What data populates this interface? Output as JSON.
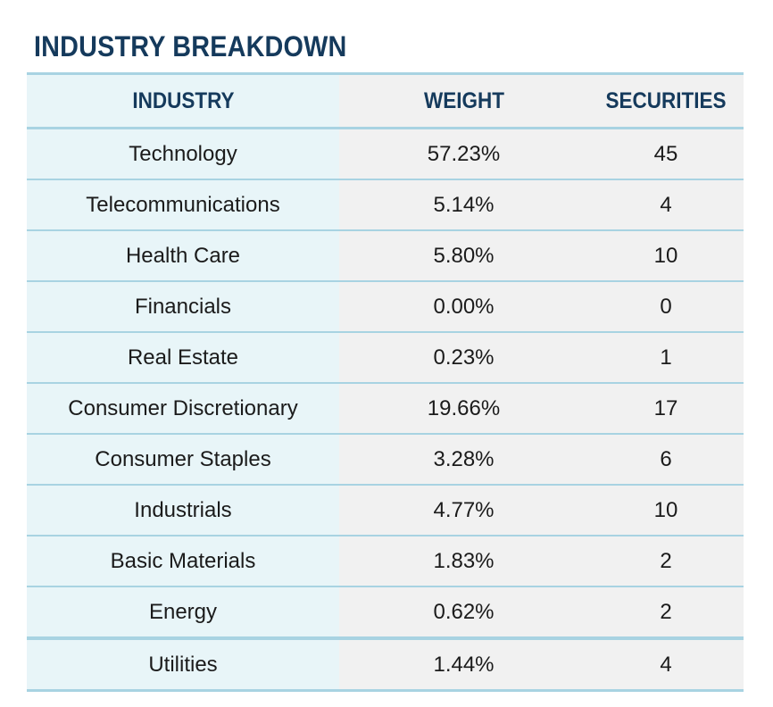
{
  "title": "INDUSTRY BREAKDOWN",
  "colors": {
    "title": "#153a5c",
    "border": "#a8d3e2",
    "industry_column_bg": "#e8f5f8",
    "value_column_bg": "#f1f1f1"
  },
  "columns": {
    "industry": "INDUSTRY",
    "weight": "WEIGHT",
    "securities": "SECURITIES"
  },
  "rows": [
    {
      "industry": "Technology",
      "weight": "57.23%",
      "securities": "45"
    },
    {
      "industry": "Telecommunications",
      "weight": "5.14%",
      "securities": "4"
    },
    {
      "industry": "Health Care",
      "weight": "5.80%",
      "securities": "10"
    },
    {
      "industry": "Financials",
      "weight": "0.00%",
      "securities": "0"
    },
    {
      "industry": "Real Estate",
      "weight": "0.23%",
      "securities": "1"
    },
    {
      "industry": "Consumer Discretionary",
      "weight": "19.66%",
      "securities": "17"
    },
    {
      "industry": "Consumer Staples",
      "weight": "3.28%",
      "securities": "6"
    },
    {
      "industry": "Industrials",
      "weight": "4.77%",
      "securities": "10"
    },
    {
      "industry": "Basic Materials",
      "weight": "1.83%",
      "securities": "2"
    },
    {
      "industry": "Energy",
      "weight": "0.62%",
      "securities": "2"
    },
    {
      "industry": "Utilities",
      "weight": "1.44%",
      "securities": "4"
    }
  ]
}
